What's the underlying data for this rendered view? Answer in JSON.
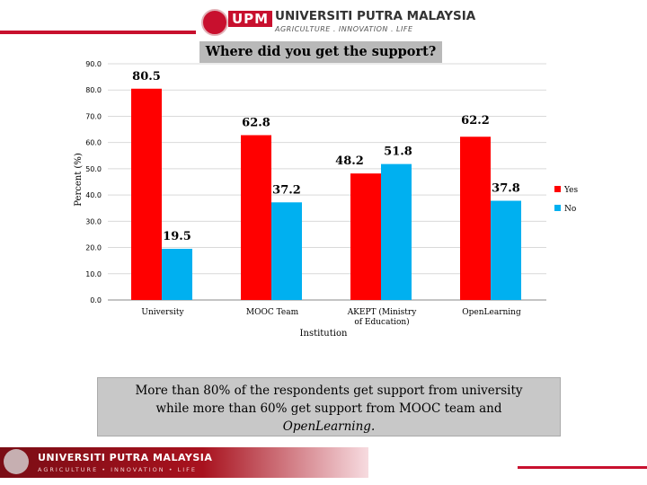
{
  "header": {
    "upm_mark": "UPM",
    "university_name": "UNIVERSITI PUTRA MALAYSIA",
    "tagline": "AGRICULTURE . INNOVATION . LIFE"
  },
  "chart_data": {
    "type": "bar",
    "title": "Where did you get the support?",
    "xlabel": "Institution",
    "ylabel": "Percent (%)",
    "ylim": [
      0,
      90
    ],
    "yticks": [
      "0.0",
      "10.0",
      "20.0",
      "30.0",
      "40.0",
      "50.0",
      "60.0",
      "70.0",
      "80.0",
      "90.0"
    ],
    "categories": [
      "University",
      "MOOC Team",
      "AKEPT (Ministry of Education)",
      "OpenLearning"
    ],
    "series": [
      {
        "name": "Yes",
        "color": "#ff0000",
        "values": [
          80.5,
          62.8,
          48.2,
          62.2
        ],
        "labels": [
          "80.5",
          "62.8",
          "48.2",
          "62.2"
        ]
      },
      {
        "name": "No",
        "color": "#00b0f0",
        "values": [
          19.5,
          37.2,
          51.8,
          37.8
        ],
        "labels": [
          "19.5",
          "37.2",
          "51.8",
          "37.8"
        ]
      }
    ],
    "legend_position": "right",
    "grid": true
  },
  "summary": {
    "line1": "More than 80% of the respondents get support  from university",
    "line2": "while more than 60% get support  from MOOC team and",
    "line3_emph": "OpenLearning."
  },
  "footer": {
    "university_name": "UNIVERSITI PUTRA MALAYSIA",
    "tagline": "AGRICULTURE • INNOVATION • LIFE"
  }
}
